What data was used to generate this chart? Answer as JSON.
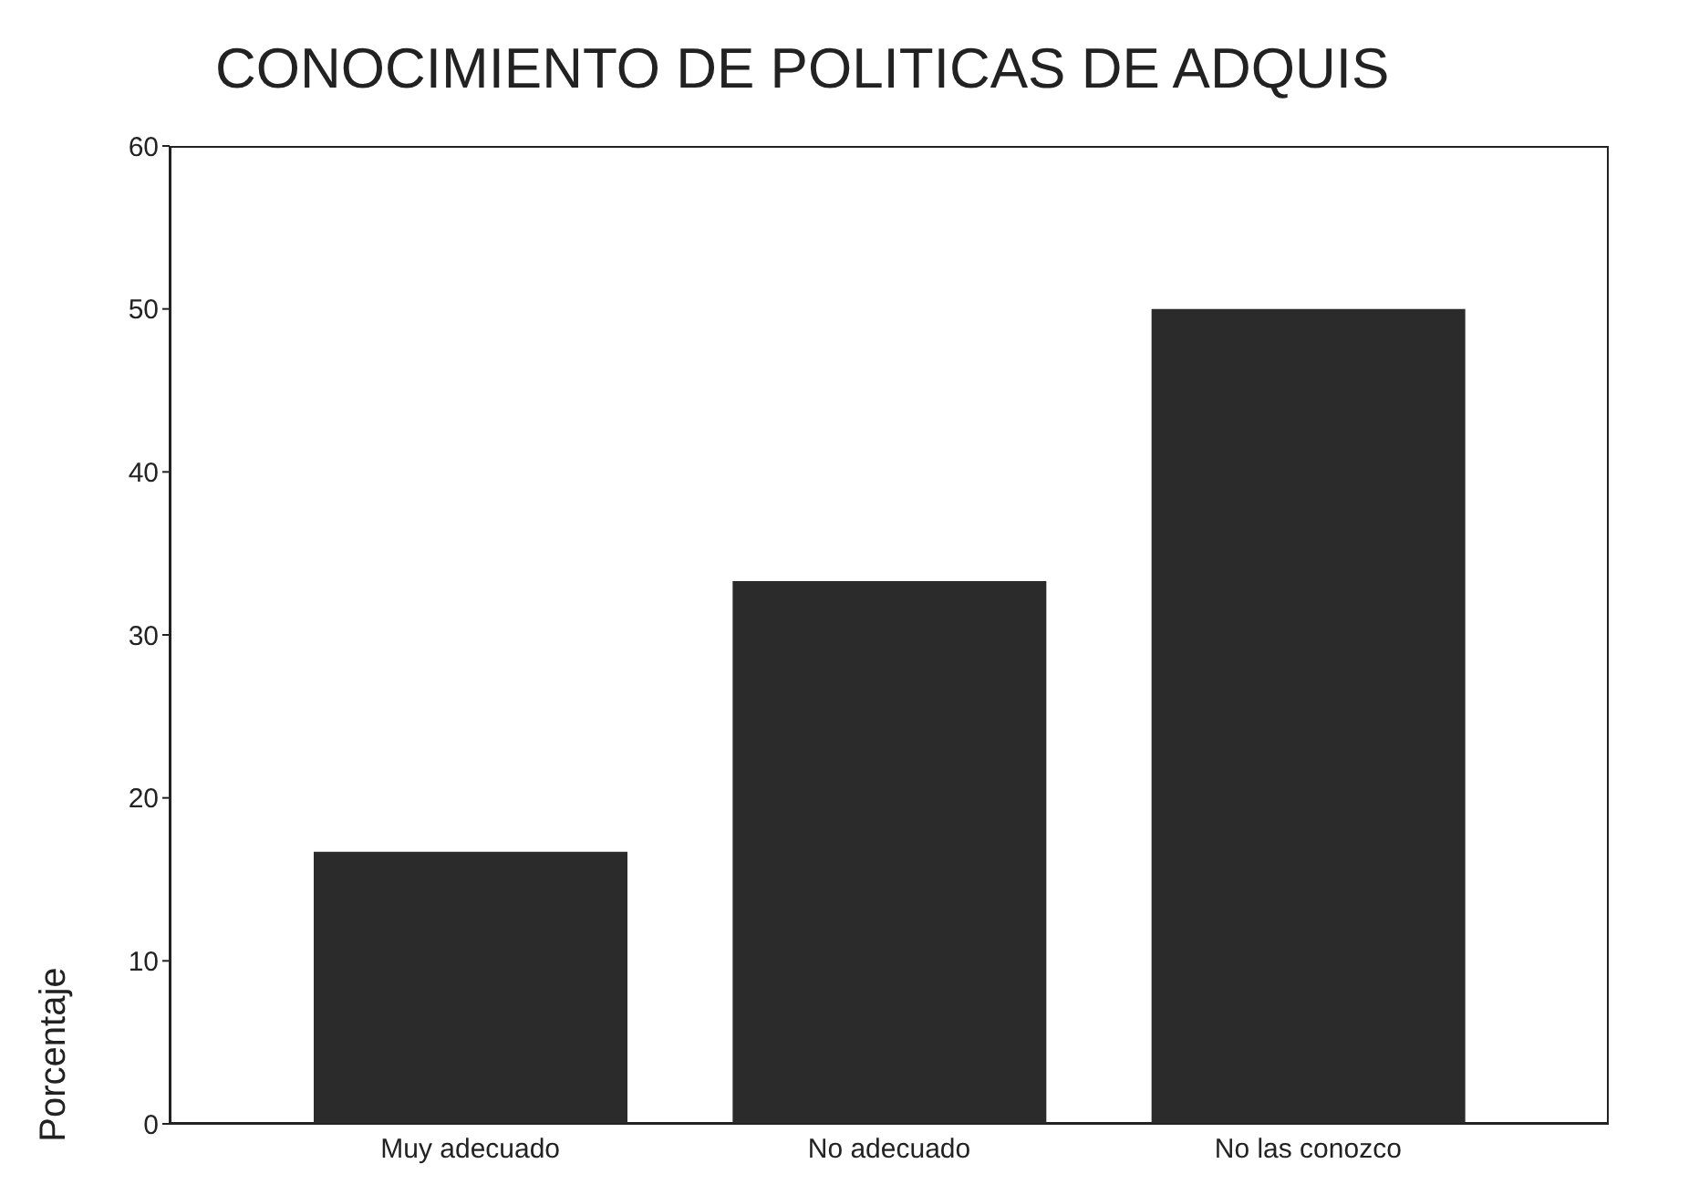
{
  "chart_data": {
    "type": "bar",
    "title": "CONOCIMIENTO DE POLITICAS DE ADQUIS",
    "ylabel": "Porcentaje",
    "categories": [
      "Muy adecuado",
      "No adecuado",
      "No las conozco"
    ],
    "values": [
      16.7,
      33.3,
      50
    ],
    "color": "#2b2b2b",
    "ylim": [
      0,
      60
    ],
    "yticks": [
      0,
      10,
      20,
      30,
      40,
      50,
      60
    ],
    "grid": false
  }
}
